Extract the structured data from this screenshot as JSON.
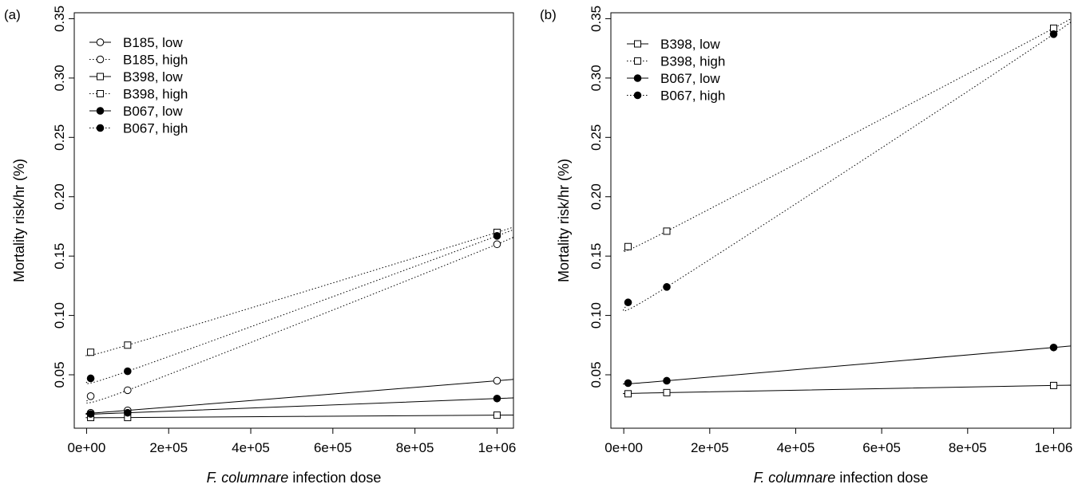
{
  "chart_data": [
    {
      "type": "line",
      "panel_label": "(a)",
      "xlabel_italic": "F. columnare",
      "xlabel_rest": " infection dose",
      "ylabel": "Mortality risk/hr (%)",
      "xlim": [
        -30000,
        1040000
      ],
      "ylim": [
        0.005,
        0.355
      ],
      "x_ticks": [
        0,
        200000,
        400000,
        600000,
        800000,
        1000000
      ],
      "x_tick_labels": [
        "0e+00",
        "2e+05",
        "4e+05",
        "6e+05",
        "8e+05",
        "1e+06"
      ],
      "y_ticks": [
        0.05,
        0.1,
        0.15,
        0.2,
        0.25,
        0.3,
        0.35
      ],
      "y_tick_labels": [
        "0.05",
        "0.10",
        "0.15",
        "0.20",
        "0.25",
        "0.30",
        "0.35"
      ],
      "legend_position": "top-left",
      "series": [
        {
          "name": "B185, low",
          "marker": "open-circle",
          "line": "solid",
          "x": [
            10000,
            100000,
            1000000
          ],
          "y": [
            0.018,
            0.02,
            0.045
          ],
          "curve_end": 0.047
        },
        {
          "name": "B185, high",
          "marker": "open-circle",
          "line": "dotted",
          "x": [
            10000,
            100000,
            1000000
          ],
          "y": [
            0.032,
            0.037,
            0.16
          ],
          "curve_end": 0.171
        },
        {
          "name": "B398, low",
          "marker": "open-square",
          "line": "solid",
          "x": [
            10000,
            100000,
            1000000
          ],
          "y": [
            0.014,
            0.014,
            0.016
          ],
          "curve_end": 0.016
        },
        {
          "name": "B398, high",
          "marker": "open-square",
          "line": "dotted",
          "x": [
            10000,
            100000,
            1000000
          ],
          "y": [
            0.069,
            0.075,
            0.17
          ],
          "curve_end": 0.177
        },
        {
          "name": "B067, low",
          "marker": "filled-circle",
          "line": "solid",
          "x": [
            10000,
            100000,
            1000000
          ],
          "y": [
            0.017,
            0.018,
            0.03
          ],
          "curve_end": 0.031
        },
        {
          "name": "B067, high",
          "marker": "filled-circle",
          "line": "dotted",
          "x": [
            10000,
            100000,
            1000000
          ],
          "y": [
            0.047,
            0.053,
            0.167
          ],
          "curve_end": 0.175
        }
      ]
    },
    {
      "type": "line",
      "panel_label": "(b)",
      "xlabel_italic": "F. columnare",
      "xlabel_rest": " infection dose",
      "ylabel": "Mortality risk/hr (%)",
      "xlim": [
        -30000,
        1040000
      ],
      "ylim": [
        0.005,
        0.355
      ],
      "x_ticks": [
        0,
        200000,
        400000,
        600000,
        800000,
        1000000
      ],
      "x_tick_labels": [
        "0e+00",
        "2e+05",
        "4e+05",
        "6e+05",
        "8e+05",
        "1e+06"
      ],
      "y_ticks": [
        0.05,
        0.1,
        0.15,
        0.2,
        0.25,
        0.3,
        0.35
      ],
      "y_tick_labels": [
        "0.05",
        "0.10",
        "0.15",
        "0.20",
        "0.25",
        "0.30",
        "0.35"
      ],
      "legend_position": "top-left",
      "series": [
        {
          "name": "B398, low",
          "marker": "open-square",
          "line": "solid",
          "x": [
            10000,
            100000,
            1000000
          ],
          "y": [
            0.034,
            0.035,
            0.041
          ],
          "curve_end": 0.041
        },
        {
          "name": "B398, high",
          "marker": "open-square",
          "line": "dotted",
          "x": [
            10000,
            100000,
            1000000
          ],
          "y": [
            0.158,
            0.171,
            0.342
          ],
          "curve_end": 0.354
        },
        {
          "name": "B067, low",
          "marker": "filled-circle",
          "line": "solid",
          "x": [
            10000,
            100000,
            1000000
          ],
          "y": [
            0.043,
            0.045,
            0.073
          ],
          "curve_end": 0.075
        },
        {
          "name": "B067, high",
          "marker": "filled-circle",
          "line": "dotted",
          "x": [
            10000,
            100000,
            1000000
          ],
          "y": [
            0.111,
            0.124,
            0.337
          ],
          "curve_end": 0.356
        }
      ]
    }
  ]
}
